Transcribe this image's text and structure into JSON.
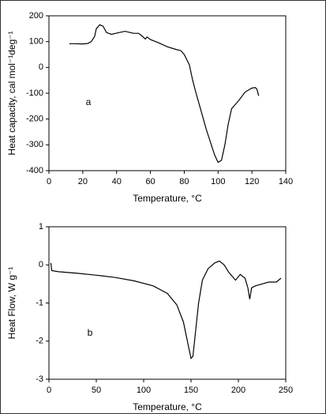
{
  "chart_data": [
    {
      "type": "line",
      "x_label": "Temperature, °C",
      "y_label": "Heat capacity, cal mol⁻¹deg⁻¹",
      "annotation": "a",
      "color": "#000000",
      "x": [
        12,
        15,
        20,
        23,
        25,
        27,
        28,
        30,
        32,
        34,
        37,
        40,
        45,
        48,
        50,
        53,
        55,
        57,
        58,
        60,
        65,
        70,
        75,
        78,
        80,
        83,
        85,
        87,
        90,
        93,
        96,
        98,
        100,
        102,
        104,
        106,
        108,
        112,
        116,
        120,
        122,
        123,
        124
      ],
      "values": [
        92,
        92,
        91,
        93,
        100,
        120,
        150,
        165,
        160,
        135,
        128,
        133,
        140,
        135,
        132,
        132,
        122,
        110,
        118,
        108,
        95,
        80,
        70,
        65,
        50,
        10,
        -50,
        -100,
        -170,
        -240,
        -300,
        -340,
        -368,
        -360,
        -300,
        -220,
        -160,
        -130,
        -95,
        -80,
        -78,
        -85,
        -110
      ],
      "xlim": [
        0,
        140
      ],
      "xticks": [
        0,
        20,
        40,
        60,
        80,
        100,
        120,
        140
      ],
      "ylim": [
        -400,
        200
      ],
      "yticks": [
        200,
        100,
        0,
        -100,
        -200,
        -300,
        -400
      ]
    },
    {
      "type": "line",
      "x_label": "Temperature, °C",
      "y_label": "Heat Flow, W g⁻¹",
      "annotation": "b",
      "color": "#000000",
      "x": [
        2,
        3,
        10,
        30,
        50,
        70,
        90,
        110,
        125,
        135,
        142,
        147,
        150,
        152,
        155,
        158,
        162,
        168,
        175,
        180,
        185,
        190,
        197,
        202,
        207,
        210,
        212,
        214,
        218,
        225,
        232,
        240,
        245
      ],
      "values": [
        0.05,
        -0.15,
        -0.18,
        -0.22,
        -0.27,
        -0.33,
        -0.42,
        -0.55,
        -0.75,
        -1.05,
        -1.5,
        -2.1,
        -2.45,
        -2.4,
        -1.7,
        -1.0,
        -0.4,
        -0.1,
        0.05,
        0.1,
        0.0,
        -0.2,
        -0.4,
        -0.25,
        -0.35,
        -0.6,
        -0.9,
        -0.6,
        -0.55,
        -0.5,
        -0.45,
        -0.45,
        -0.35
      ],
      "xlim": [
        0,
        250
      ],
      "xticks": [
        0,
        50,
        100,
        150,
        200,
        250
      ],
      "ylim": [
        -3,
        1
      ],
      "yticks": [
        1,
        0,
        -1,
        -2,
        -3
      ]
    }
  ]
}
